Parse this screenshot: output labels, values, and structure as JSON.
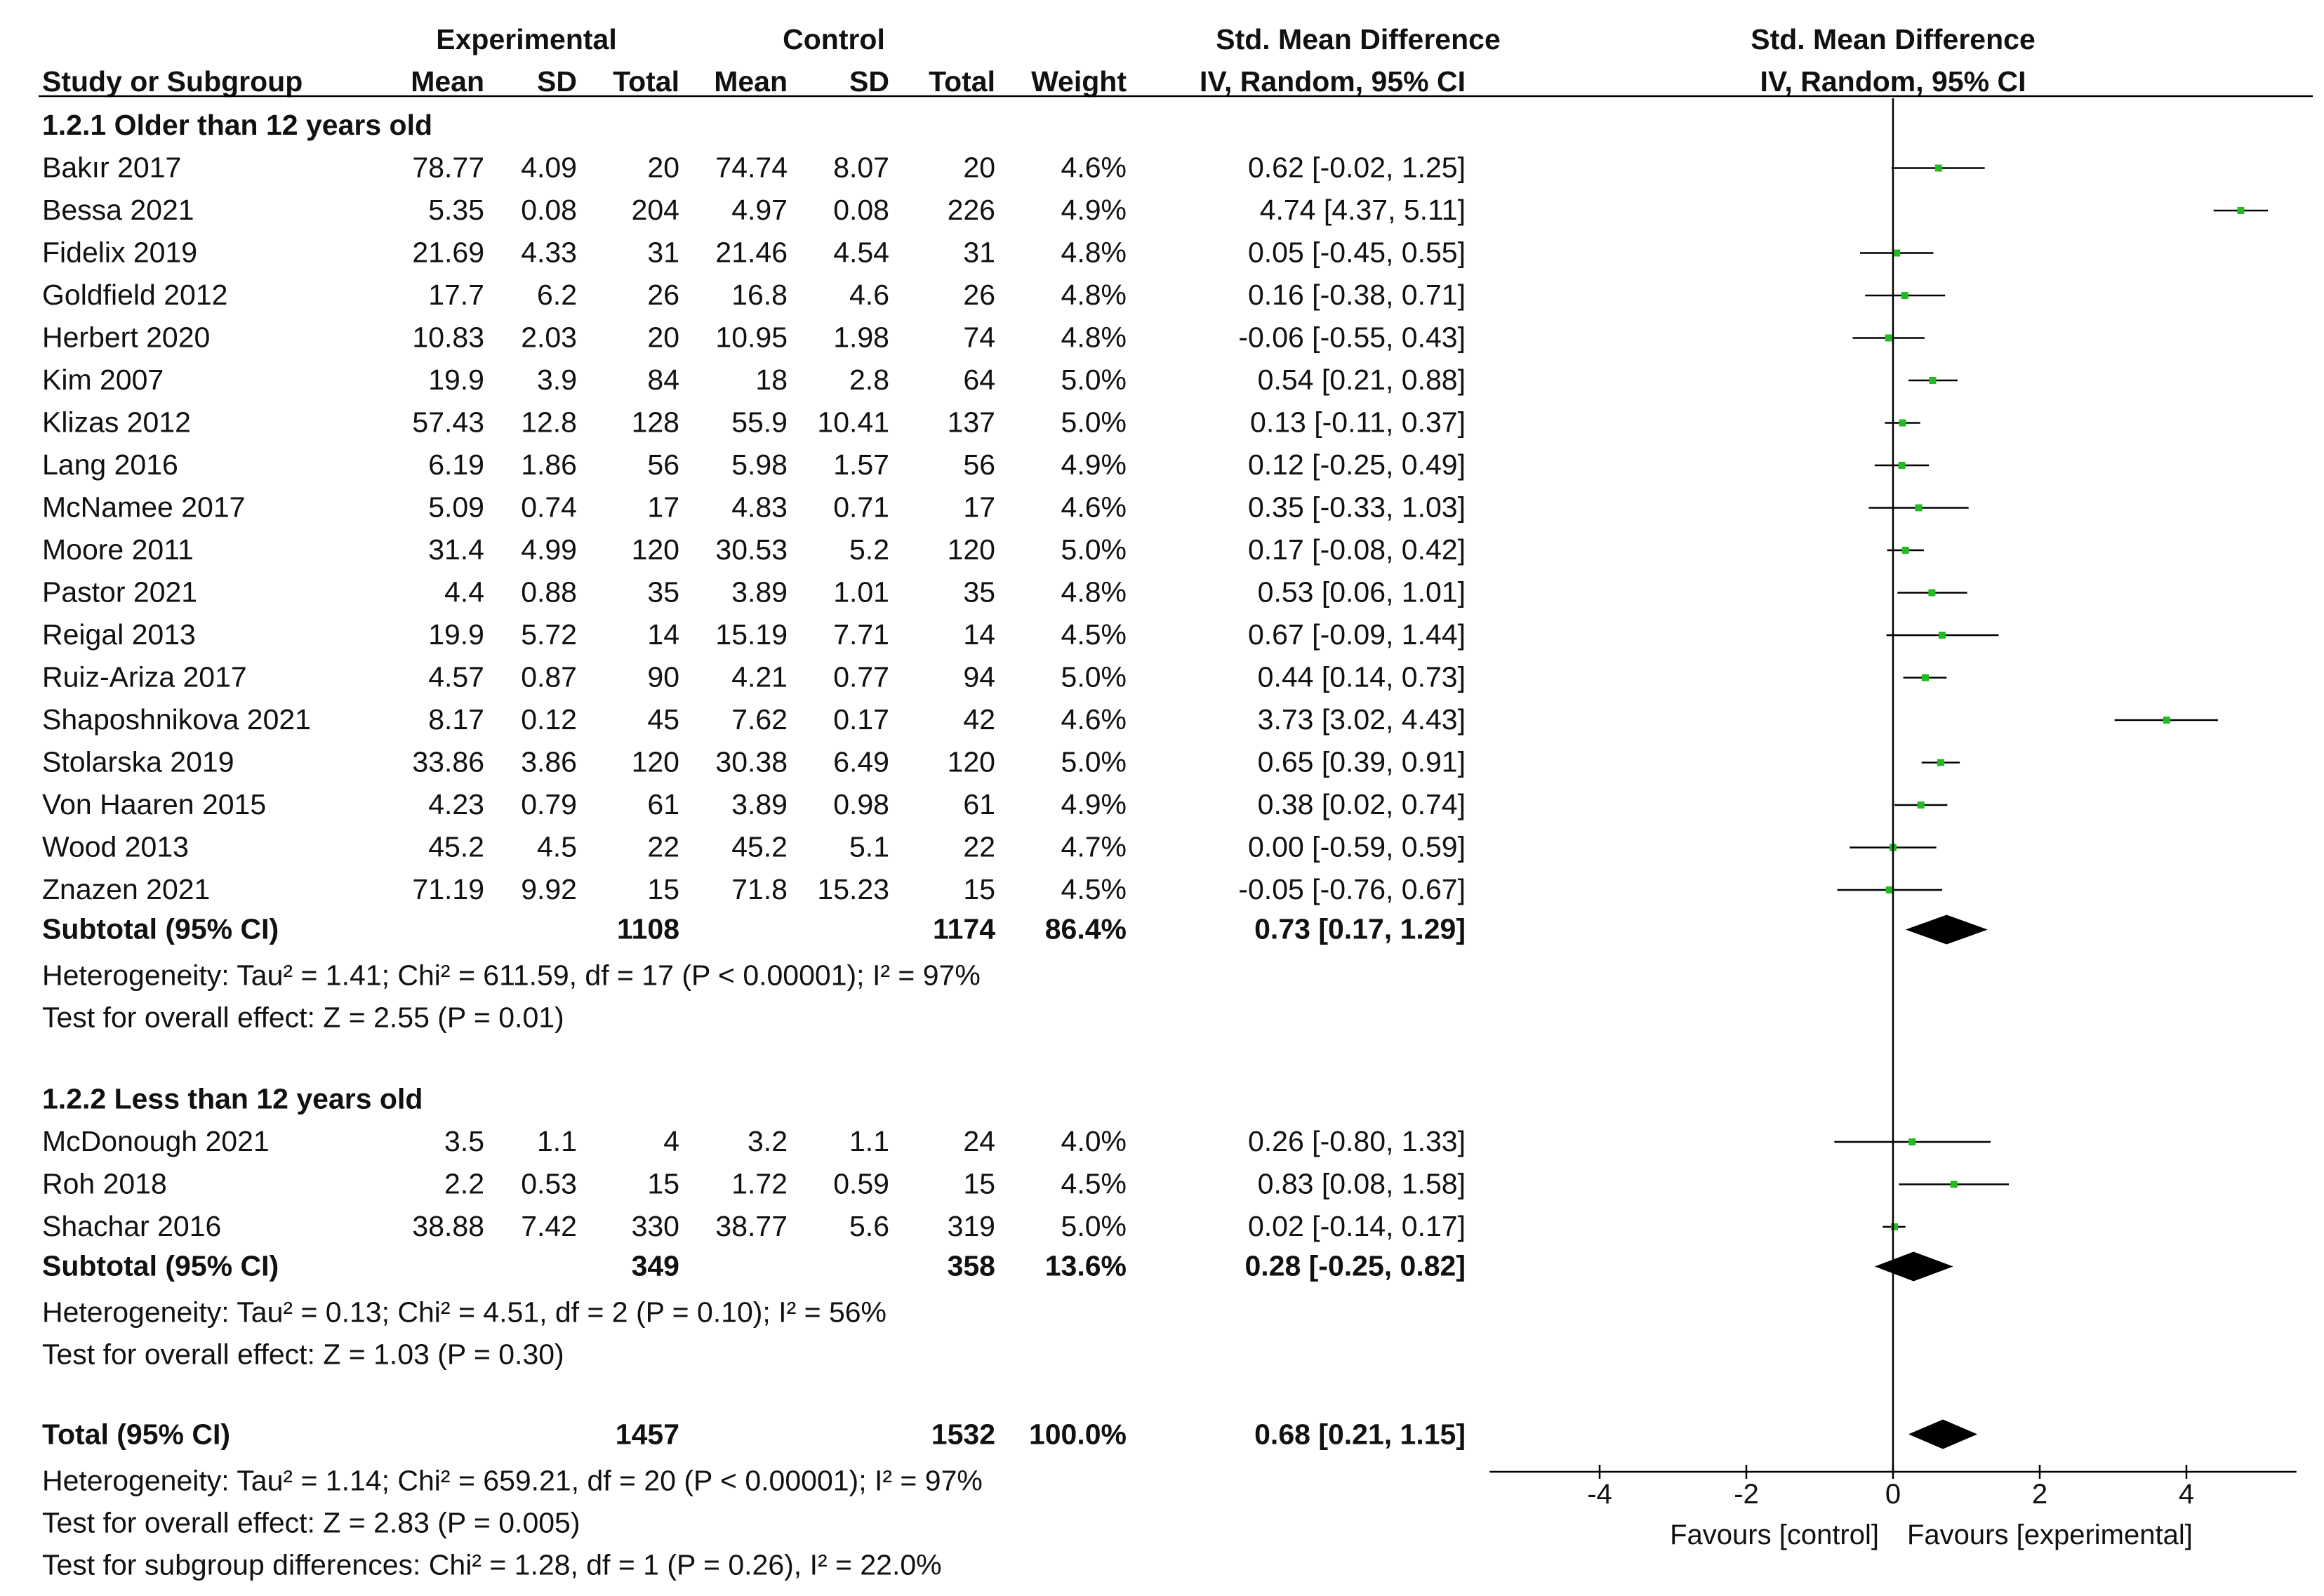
{
  "headers": {
    "experimental": "Experimental",
    "control": "Control",
    "smd_left": "Std. Mean Difference",
    "smd_right": "Std. Mean Difference",
    "study": "Study or Subgroup",
    "mean_e": "Mean",
    "sd_e": "SD",
    "total_e": "Total",
    "mean_c": "Mean",
    "sd_c": "SD",
    "total_c": "Total",
    "weight": "Weight",
    "method_left": "IV, Random, 95% CI",
    "method_right": "IV, Random, 95% CI"
  },
  "groups": [
    {
      "title": "1.2.1 Older than 12 years old",
      "studies": [
        {
          "name": "Bakır 2017",
          "mean_e": "78.77",
          "sd_e": "4.09",
          "total_e": "20",
          "mean_c": "74.74",
          "sd_c": "8.07",
          "total_c": "20",
          "weight": "4.6%",
          "ci_text": "0.62 [-0.02, 1.25]",
          "est": 0.62,
          "lo": -0.02,
          "hi": 1.25
        },
        {
          "name": "Bessa 2021",
          "mean_e": "5.35",
          "sd_e": "0.08",
          "total_e": "204",
          "mean_c": "4.97",
          "sd_c": "0.08",
          "total_c": "226",
          "weight": "4.9%",
          "ci_text": "4.74 [4.37, 5.11]",
          "est": 4.74,
          "lo": 4.37,
          "hi": 5.11
        },
        {
          "name": "Fidelix 2019",
          "mean_e": "21.69",
          "sd_e": "4.33",
          "total_e": "31",
          "mean_c": "21.46",
          "sd_c": "4.54",
          "total_c": "31",
          "weight": "4.8%",
          "ci_text": "0.05 [-0.45, 0.55]",
          "est": 0.05,
          "lo": -0.45,
          "hi": 0.55
        },
        {
          "name": "Goldfield 2012",
          "mean_e": "17.7",
          "sd_e": "6.2",
          "total_e": "26",
          "mean_c": "16.8",
          "sd_c": "4.6",
          "total_c": "26",
          "weight": "4.8%",
          "ci_text": "0.16 [-0.38, 0.71]",
          "est": 0.16,
          "lo": -0.38,
          "hi": 0.71
        },
        {
          "name": "Herbert 2020",
          "mean_e": "10.83",
          "sd_e": "2.03",
          "total_e": "20",
          "mean_c": "10.95",
          "sd_c": "1.98",
          "total_c": "74",
          "weight": "4.8%",
          "ci_text": "-0.06 [-0.55, 0.43]",
          "est": -0.06,
          "lo": -0.55,
          "hi": 0.43
        },
        {
          "name": "Kim 2007",
          "mean_e": "19.9",
          "sd_e": "3.9",
          "total_e": "84",
          "mean_c": "18",
          "sd_c": "2.8",
          "total_c": "64",
          "weight": "5.0%",
          "ci_text": "0.54 [0.21, 0.88]",
          "est": 0.54,
          "lo": 0.21,
          "hi": 0.88
        },
        {
          "name": "Klizas 2012",
          "mean_e": "57.43",
          "sd_e": "12.8",
          "total_e": "128",
          "mean_c": "55.9",
          "sd_c": "10.41",
          "total_c": "137",
          "weight": "5.0%",
          "ci_text": "0.13 [-0.11, 0.37]",
          "est": 0.13,
          "lo": -0.11,
          "hi": 0.37
        },
        {
          "name": "Lang 2016",
          "mean_e": "6.19",
          "sd_e": "1.86",
          "total_e": "56",
          "mean_c": "5.98",
          "sd_c": "1.57",
          "total_c": "56",
          "weight": "4.9%",
          "ci_text": "0.12 [-0.25, 0.49]",
          "est": 0.12,
          "lo": -0.25,
          "hi": 0.49
        },
        {
          "name": "McNamee 2017",
          "mean_e": "5.09",
          "sd_e": "0.74",
          "total_e": "17",
          "mean_c": "4.83",
          "sd_c": "0.71",
          "total_c": "17",
          "weight": "4.6%",
          "ci_text": "0.35 [-0.33, 1.03]",
          "est": 0.35,
          "lo": -0.33,
          "hi": 1.03
        },
        {
          "name": "Moore 2011",
          "mean_e": "31.4",
          "sd_e": "4.99",
          "total_e": "120",
          "mean_c": "30.53",
          "sd_c": "5.2",
          "total_c": "120",
          "weight": "5.0%",
          "ci_text": "0.17 [-0.08, 0.42]",
          "est": 0.17,
          "lo": -0.08,
          "hi": 0.42
        },
        {
          "name": "Pastor 2021",
          "mean_e": "4.4",
          "sd_e": "0.88",
          "total_e": "35",
          "mean_c": "3.89",
          "sd_c": "1.01",
          "total_c": "35",
          "weight": "4.8%",
          "ci_text": "0.53 [0.06, 1.01]",
          "est": 0.53,
          "lo": 0.06,
          "hi": 1.01
        },
        {
          "name": "Reigal 2013",
          "mean_e": "19.9",
          "sd_e": "5.72",
          "total_e": "14",
          "mean_c": "15.19",
          "sd_c": "7.71",
          "total_c": "14",
          "weight": "4.5%",
          "ci_text": "0.67 [-0.09, 1.44]",
          "est": 0.67,
          "lo": -0.09,
          "hi": 1.44
        },
        {
          "name": "Ruiz-Ariza 2017",
          "mean_e": "4.57",
          "sd_e": "0.87",
          "total_e": "90",
          "mean_c": "4.21",
          "sd_c": "0.77",
          "total_c": "94",
          "weight": "5.0%",
          "ci_text": "0.44 [0.14, 0.73]",
          "est": 0.44,
          "lo": 0.14,
          "hi": 0.73
        },
        {
          "name": "Shaposhnikova 2021",
          "mean_e": "8.17",
          "sd_e": "0.12",
          "total_e": "45",
          "mean_c": "7.62",
          "sd_c": "0.17",
          "total_c": "42",
          "weight": "4.6%",
          "ci_text": "3.73 [3.02, 4.43]",
          "est": 3.73,
          "lo": 3.02,
          "hi": 4.43
        },
        {
          "name": "Stolarska 2019",
          "mean_e": "33.86",
          "sd_e": "3.86",
          "total_e": "120",
          "mean_c": "30.38",
          "sd_c": "6.49",
          "total_c": "120",
          "weight": "5.0%",
          "ci_text": "0.65 [0.39, 0.91]",
          "est": 0.65,
          "lo": 0.39,
          "hi": 0.91
        },
        {
          "name": "Von Haaren 2015",
          "mean_e": "4.23",
          "sd_e": "0.79",
          "total_e": "61",
          "mean_c": "3.89",
          "sd_c": "0.98",
          "total_c": "61",
          "weight": "4.9%",
          "ci_text": "0.38 [0.02, 0.74]",
          "est": 0.38,
          "lo": 0.02,
          "hi": 0.74
        },
        {
          "name": "Wood 2013",
          "mean_e": "45.2",
          "sd_e": "4.5",
          "total_e": "22",
          "mean_c": "45.2",
          "sd_c": "5.1",
          "total_c": "22",
          "weight": "4.7%",
          "ci_text": "0.00 [-0.59, 0.59]",
          "est": 0.0,
          "lo": -0.59,
          "hi": 0.59
        },
        {
          "name": "Znazen 2021",
          "mean_e": "71.19",
          "sd_e": "9.92",
          "total_e": "15",
          "mean_c": "71.8",
          "sd_c": "15.23",
          "total_c": "15",
          "weight": "4.5%",
          "ci_text": "-0.05 [-0.76, 0.67]",
          "est": -0.05,
          "lo": -0.76,
          "hi": 0.67
        }
      ],
      "subtotal": {
        "label": "Subtotal (95% CI)",
        "total_e": "1108",
        "total_c": "1174",
        "weight": "86.4%",
        "ci_text": "0.73 [0.17, 1.29]",
        "est": 0.73,
        "lo": 0.17,
        "hi": 1.29
      },
      "heterogeneity": "Heterogeneity: Tau² = 1.41; Chi² = 611.59, df = 17 (P < 0.00001); I² = 97%",
      "overall": "Test for overall effect: Z = 2.55 (P = 0.01)"
    },
    {
      "title": "1.2.2 Less than 12 years old",
      "studies": [
        {
          "name": "McDonough 2021",
          "mean_e": "3.5",
          "sd_e": "1.1",
          "total_e": "4",
          "mean_c": "3.2",
          "sd_c": "1.1",
          "total_c": "24",
          "weight": "4.0%",
          "ci_text": "0.26 [-0.80, 1.33]",
          "est": 0.26,
          "lo": -0.8,
          "hi": 1.33
        },
        {
          "name": "Roh 2018",
          "mean_e": "2.2",
          "sd_e": "0.53",
          "total_e": "15",
          "mean_c": "1.72",
          "sd_c": "0.59",
          "total_c": "15",
          "weight": "4.5%",
          "ci_text": "0.83 [0.08, 1.58]",
          "est": 0.83,
          "lo": 0.08,
          "hi": 1.58
        },
        {
          "name": "Shachar 2016",
          "mean_e": "38.88",
          "sd_e": "7.42",
          "total_e": "330",
          "mean_c": "38.77",
          "sd_c": "5.6",
          "total_c": "319",
          "weight": "5.0%",
          "ci_text": "0.02 [-0.14, 0.17]",
          "est": 0.02,
          "lo": -0.14,
          "hi": 0.17
        }
      ],
      "subtotal": {
        "label": "Subtotal (95% CI)",
        "total_e": "349",
        "total_c": "358",
        "weight": "13.6%",
        "ci_text": "0.28 [-0.25, 0.82]",
        "est": 0.28,
        "lo": -0.25,
        "hi": 0.82
      },
      "heterogeneity": "Heterogeneity: Tau² = 0.13; Chi² = 4.51, df = 2 (P = 0.10); I² = 56%",
      "overall": "Test for overall effect: Z = 1.03 (P = 0.30)"
    }
  ],
  "total": {
    "label": "Total (95% CI)",
    "total_e": "1457",
    "total_c": "1532",
    "weight": "100.0%",
    "ci_text": "0.68 [0.21, 1.15]",
    "est": 0.68,
    "lo": 0.21,
    "hi": 1.15
  },
  "footer": {
    "heterogeneity": "Heterogeneity: Tau² = 1.14; Chi² = 659.21, df = 20 (P < 0.00001); I² = 97%",
    "overall": "Test for overall effect: Z = 2.83 (P = 0.005)",
    "subgroup": "Test for subgroup differences: Chi² = 1.28, df = 1 (P = 0.26), I² = 22.0%"
  },
  "axis": {
    "ticks": [
      -4,
      -2,
      0,
      2,
      4
    ],
    "tick_labels": [
      "-4",
      "-2",
      "0",
      "2",
      "4"
    ],
    "xlim": [
      -5.5,
      5.5
    ],
    "favours_left": "Favours [control]",
    "favours_right": "Favours [experimental]"
  },
  "colors": {
    "study_marker": "#22bb22",
    "diamond": "#000000",
    "text": "#111111"
  },
  "chart_data": {
    "type": "forest",
    "title": "Std. Mean Difference, IV, Random, 95% CI",
    "xlabel_left": "Favours [control]",
    "xlabel_right": "Favours [experimental]",
    "xlim": [
      -5.5,
      5.5
    ],
    "xticks": [
      -4,
      -2,
      0,
      2,
      4
    ]
  }
}
